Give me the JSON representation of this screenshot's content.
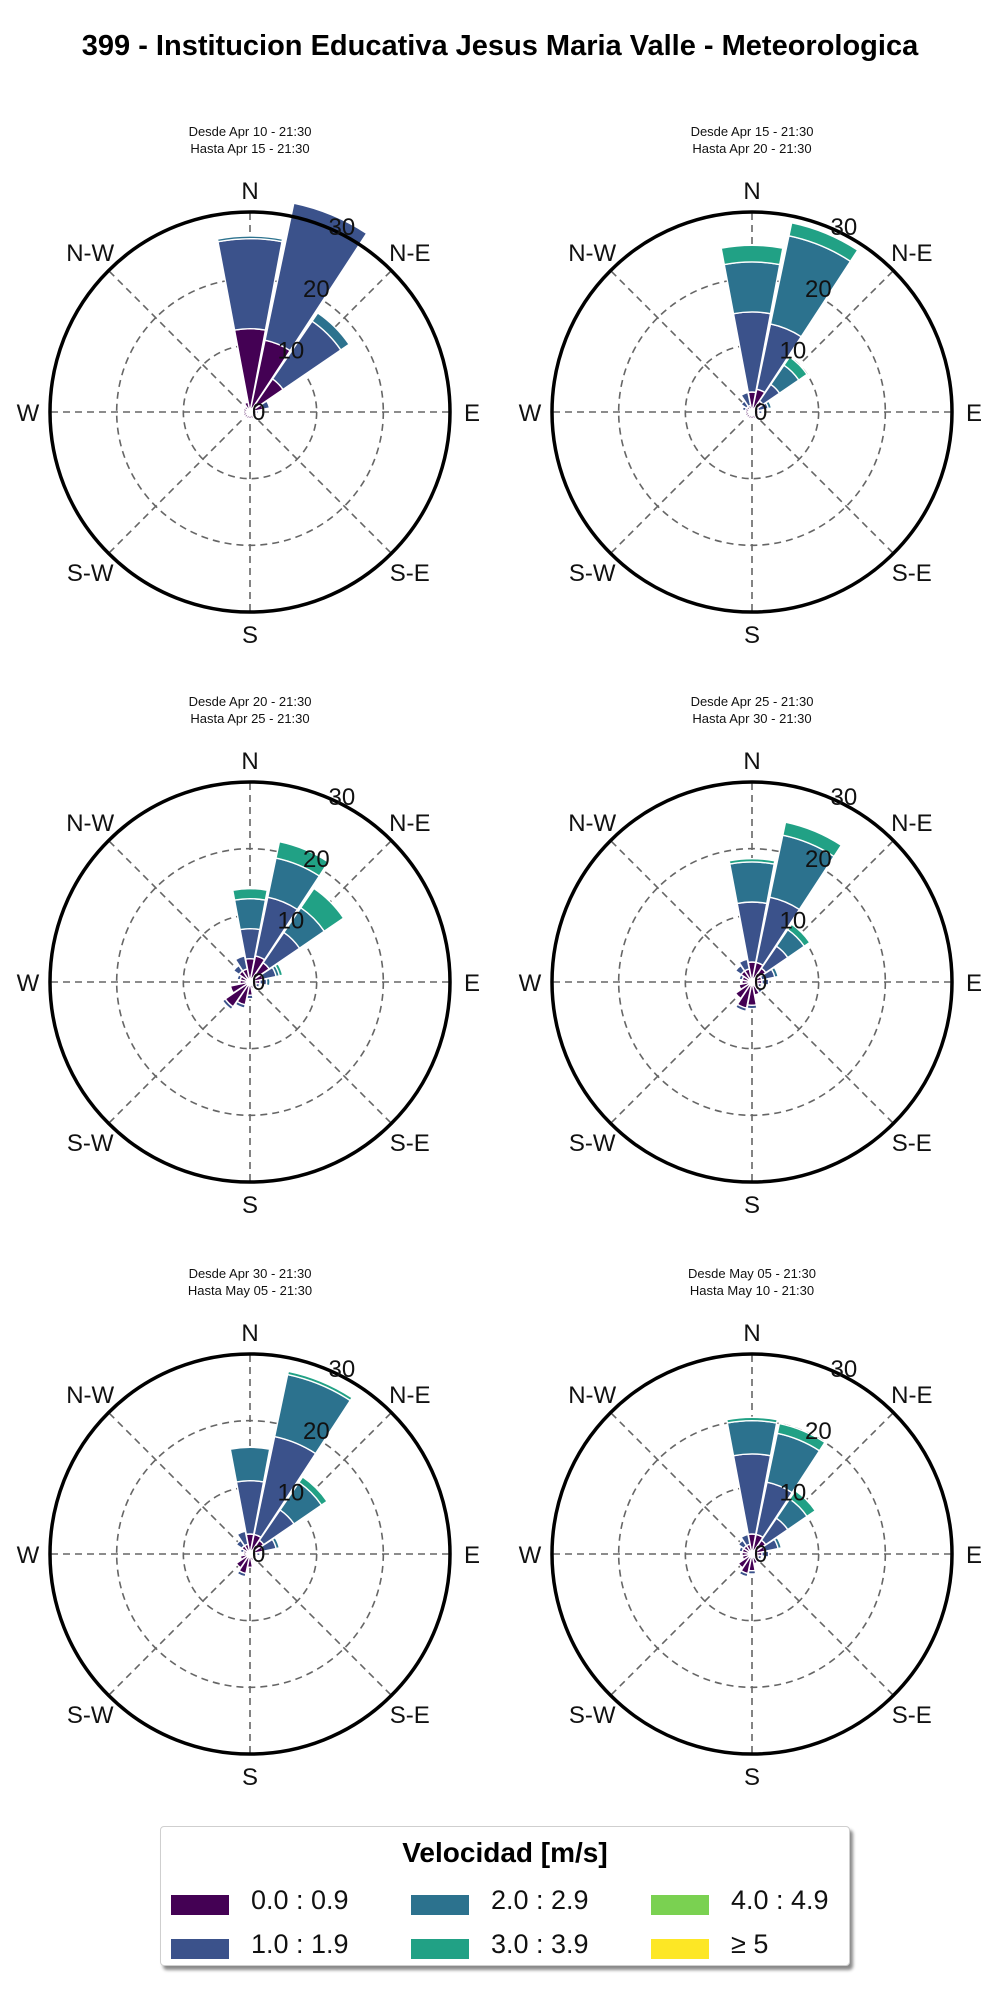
{
  "title": "399 - Institucion Educativa Jesus Maria Valle - Meteorologica",
  "colors": {
    "bins": [
      "#440154",
      "#3b528b",
      "#2c728e",
      "#21a185",
      "#7ad151",
      "#fde725"
    ],
    "ring": "#000000",
    "grid": "#666666"
  },
  "legend": {
    "title": "Velocidad [m/s]",
    "items": [
      "0.0 : 0.9",
      "1.0 : 1.9",
      "2.0 : 2.9",
      "3.0 : 3.9",
      "4.0 : 4.9",
      "≥  5"
    ]
  },
  "chart_data": [
    {
      "type": "windrose",
      "title": "Desde Apr 10 - 21:30",
      "subtitle": "Hasta Apr 15 - 21:30",
      "direction_labels": [
        "N",
        "N-E",
        "E",
        "S-E",
        "S",
        "S-W",
        "W",
        "N-W"
      ],
      "radial_ticks": [
        "0",
        "10",
        "20",
        "30"
      ],
      "rmax": 30,
      "directions_deg": [
        0,
        22.5,
        45,
        67.5,
        90,
        112.5,
        135,
        157.5,
        180,
        202.5,
        225,
        247.5,
        270,
        292.5,
        315,
        337.5
      ],
      "bins": [
        "0.0 : 0.9",
        "1.0 : 1.9",
        "2.0 : 2.9",
        "3.0 : 3.9",
        "4.0 : 4.9",
        "≥  5"
      ],
      "frequency": [
        [
          12.5,
          13.5,
          0.4,
          0,
          0,
          0
        ],
        [
          11.0,
          21.0,
          0,
          0,
          0,
          0
        ],
        [
          6.0,
          10.5,
          1.5,
          0,
          0,
          0
        ],
        [
          2.0,
          1.0,
          0,
          0,
          0,
          0
        ],
        [
          1.0,
          0.3,
          0,
          0,
          0,
          0
        ],
        [
          1.0,
          0,
          0,
          0,
          0,
          0
        ],
        [
          1.0,
          0,
          0,
          0,
          0,
          0
        ],
        [
          1.0,
          0,
          0,
          0,
          0,
          0
        ],
        [
          1.0,
          0,
          0,
          0,
          0,
          0
        ],
        [
          1.0,
          0,
          0,
          0,
          0,
          0
        ],
        [
          1.0,
          0,
          0,
          0,
          0,
          0
        ],
        [
          1.0,
          0,
          0,
          0,
          0,
          0
        ],
        [
          1.0,
          0,
          0,
          0,
          0,
          0
        ],
        [
          1.0,
          0,
          0,
          0,
          0,
          0
        ],
        [
          1.0,
          0,
          0,
          0,
          0,
          0
        ],
        [
          1.5,
          0,
          0,
          0,
          0,
          0
        ]
      ]
    },
    {
      "type": "windrose",
      "title": "Desde Apr 15 - 21:30",
      "subtitle": "Hasta Apr 20 - 21:30",
      "direction_labels": [
        "N",
        "N-E",
        "E",
        "S-E",
        "S",
        "S-W",
        "W",
        "N-W"
      ],
      "radial_ticks": [
        "0",
        "10",
        "20",
        "30"
      ],
      "rmax": 30,
      "directions_deg": [
        0,
        22.5,
        45,
        67.5,
        90,
        112.5,
        135,
        157.5,
        180,
        202.5,
        225,
        247.5,
        270,
        292.5,
        315,
        337.5
      ],
      "bins": [
        "0.0 : 0.9",
        "1.0 : 1.9",
        "2.0 : 2.9",
        "3.0 : 3.9",
        "4.0 : 4.9",
        "≥  5"
      ],
      "frequency": [
        [
          3.0,
          12.0,
          7.5,
          2.5,
          0,
          0
        ],
        [
          3.5,
          10.0,
          13.5,
          2.0,
          0,
          0
        ],
        [
          2.0,
          3.0,
          3.5,
          1.5,
          0,
          0
        ],
        [
          1.0,
          1.5,
          0.5,
          0,
          0,
          0
        ],
        [
          1.0,
          0.5,
          0,
          0,
          0,
          0
        ],
        [
          1.0,
          0,
          0,
          0,
          0,
          0
        ],
        [
          1.0,
          0,
          0,
          0,
          0,
          0
        ],
        [
          1.0,
          0,
          0,
          0,
          0,
          0
        ],
        [
          1.0,
          0,
          0,
          0,
          0,
          0
        ],
        [
          1.0,
          0,
          0,
          0,
          0,
          0
        ],
        [
          1.0,
          0,
          0,
          0,
          0,
          0
        ],
        [
          1.0,
          0,
          0,
          0,
          0,
          0
        ],
        [
          1.0,
          0,
          0,
          0,
          0,
          0
        ],
        [
          1.0,
          0.5,
          0,
          0,
          0,
          0
        ],
        [
          1.0,
          1.0,
          0,
          0,
          0,
          0
        ],
        [
          1.0,
          2.0,
          0,
          0,
          0,
          0
        ]
      ]
    },
    {
      "type": "windrose",
      "title": "Desde Apr 20 - 21:30",
      "subtitle": "Hasta Apr 25 - 21:30",
      "direction_labels": [
        "N",
        "N-E",
        "E",
        "S-E",
        "S",
        "S-W",
        "W",
        "N-W"
      ],
      "radial_ticks": [
        "0",
        "10",
        "20",
        "30"
      ],
      "rmax": 30,
      "directions_deg": [
        0,
        22.5,
        45,
        67.5,
        90,
        112.5,
        135,
        157.5,
        180,
        202.5,
        225,
        247.5,
        270,
        292.5,
        315,
        337.5
      ],
      "bins": [
        "0.0 : 0.9",
        "1.0 : 1.9",
        "2.0 : 2.9",
        "3.0 : 3.9",
        "4.0 : 4.9",
        "≥  5"
      ],
      "frequency": [
        [
          3.5,
          4.5,
          4.5,
          1.5,
          0,
          0
        ],
        [
          4.0,
          9.0,
          6.0,
          2.5,
          0,
          0
        ],
        [
          3.5,
          5.5,
          4.5,
          3.5,
          0,
          0
        ],
        [
          2.0,
          2.0,
          0.5,
          0.5,
          0,
          0
        ],
        [
          1.5,
          1.0,
          0.5,
          0,
          0,
          0
        ],
        [
          1.0,
          0.5,
          0,
          0,
          0,
          0
        ],
        [
          1.0,
          0,
          0,
          0,
          0,
          0
        ],
        [
          1.0,
          0,
          0,
          0,
          0,
          0
        ],
        [
          2.0,
          0.5,
          0,
          0,
          0,
          0
        ],
        [
          3.5,
          0.5,
          0,
          0,
          0,
          0
        ],
        [
          4.5,
          0.5,
          0,
          0,
          0,
          0
        ],
        [
          3.0,
          0,
          0,
          0,
          0,
          0
        ],
        [
          1.5,
          0,
          0,
          0,
          0,
          0
        ],
        [
          1.5,
          0.5,
          0,
          0,
          0,
          0
        ],
        [
          2.0,
          1.0,
          0,
          0,
          0,
          0
        ],
        [
          2.0,
          2.0,
          0,
          0,
          0,
          0
        ]
      ]
    },
    {
      "type": "windrose",
      "title": "Desde Apr 25 - 21:30",
      "subtitle": "Hasta Apr 30 - 21:30",
      "direction_labels": [
        "N",
        "N-E",
        "E",
        "S-E",
        "S",
        "S-W",
        "W",
        "N-W"
      ],
      "radial_ticks": [
        "0",
        "10",
        "20",
        "30"
      ],
      "rmax": 30,
      "directions_deg": [
        0,
        22.5,
        45,
        67.5,
        90,
        112.5,
        135,
        157.5,
        180,
        202.5,
        225,
        247.5,
        270,
        292.5,
        315,
        337.5
      ],
      "bins": [
        "0.0 : 0.9",
        "1.0 : 1.9",
        "2.0 : 2.9",
        "3.0 : 3.9",
        "4.0 : 4.9",
        "≥  5"
      ],
      "frequency": [
        [
          3.0,
          9.0,
          6.0,
          0.5,
          0,
          0
        ],
        [
          3.0,
          10.0,
          9.5,
          2.0,
          0,
          0
        ],
        [
          2.5,
          4.0,
          3.0,
          1.0,
          0,
          0
        ],
        [
          1.5,
          2.0,
          0.5,
          0,
          0,
          0
        ],
        [
          1.5,
          1.0,
          0,
          0,
          0,
          0
        ],
        [
          1.0,
          0.5,
          0,
          0,
          0,
          0
        ],
        [
          1.5,
          0.5,
          0,
          0,
          0,
          0
        ],
        [
          2.0,
          0,
          0,
          0,
          0,
          0
        ],
        [
          3.5,
          0.5,
          0,
          0,
          0,
          0
        ],
        [
          4.0,
          0.5,
          0,
          0,
          0,
          0
        ],
        [
          3.0,
          0,
          0,
          0,
          0,
          0
        ],
        [
          2.0,
          0,
          0,
          0,
          0,
          0
        ],
        [
          1.5,
          0,
          0,
          0,
          0,
          0
        ],
        [
          1.5,
          0.5,
          0,
          0,
          0,
          0
        ],
        [
          2.0,
          1.0,
          0,
          0,
          0,
          0
        ],
        [
          2.0,
          1.5,
          0,
          0,
          0,
          0
        ]
      ]
    },
    {
      "type": "windrose",
      "title": "Desde Apr 30 - 21:30",
      "subtitle": "Hasta May 05 - 21:30",
      "direction_labels": [
        "N",
        "N-E",
        "E",
        "S-E",
        "S",
        "S-W",
        "W",
        "N-W"
      ],
      "radial_ticks": [
        "0",
        "10",
        "20",
        "30"
      ],
      "rmax": 30,
      "directions_deg": [
        0,
        22.5,
        45,
        67.5,
        90,
        112.5,
        135,
        157.5,
        180,
        202.5,
        225,
        247.5,
        270,
        292.5,
        315,
        337.5
      ],
      "bins": [
        "0.0 : 0.9",
        "1.0 : 1.9",
        "2.0 : 2.9",
        "3.0 : 3.9",
        "4.0 : 4.9",
        "≥  5"
      ],
      "frequency": [
        [
          3.0,
          8.0,
          5.0,
          0,
          0,
          0
        ],
        [
          3.0,
          15.0,
          9.5,
          0.5,
          0,
          0
        ],
        [
          2.5,
          5.5,
          5.0,
          1.0,
          0,
          0
        ],
        [
          2.0,
          2.0,
          0.5,
          0,
          0,
          0
        ],
        [
          1.0,
          0.5,
          0,
          0,
          0,
          0
        ],
        [
          1.0,
          0,
          0,
          0,
          0,
          0
        ],
        [
          1.0,
          0,
          0,
          0,
          0,
          0
        ],
        [
          1.0,
          0,
          0,
          0,
          0,
          0
        ],
        [
          2.0,
          0,
          0,
          0,
          0,
          0
        ],
        [
          3.0,
          0.5,
          0,
          0,
          0,
          0
        ],
        [
          2.5,
          0,
          0,
          0,
          0,
          0
        ],
        [
          1.5,
          0,
          0,
          0,
          0,
          0
        ],
        [
          1.0,
          0,
          0,
          0,
          0,
          0
        ],
        [
          1.0,
          0.5,
          0,
          0,
          0,
          0
        ],
        [
          1.5,
          1.0,
          0,
          0,
          0,
          0
        ],
        [
          1.5,
          2.0,
          0,
          0,
          0,
          0
        ]
      ]
    },
    {
      "type": "windrose",
      "title": "Desde May 05 - 21:30",
      "subtitle": "Hasta May 10 - 21:30",
      "direction_labels": [
        "N",
        "N-E",
        "E",
        "S-E",
        "S",
        "S-W",
        "W",
        "N-W"
      ],
      "radial_ticks": [
        "0",
        "10",
        "20",
        "30"
      ],
      "rmax": 30,
      "directions_deg": [
        0,
        22.5,
        45,
        67.5,
        90,
        112.5,
        135,
        157.5,
        180,
        202.5,
        225,
        247.5,
        270,
        292.5,
        315,
        337.5
      ],
      "bins": [
        "0.0 : 0.9",
        "1.0 : 1.9",
        "2.0 : 2.9",
        "3.0 : 3.9",
        "4.0 : 4.9",
        "≥  5"
      ],
      "frequency": [
        [
          3.0,
          12.0,
          5.0,
          0.5,
          0,
          0
        ],
        [
          3.0,
          8.0,
          7.5,
          1.5,
          0,
          0
        ],
        [
          2.5,
          4.0,
          3.5,
          1.5,
          0,
          0
        ],
        [
          2.0,
          2.0,
          0.5,
          0,
          0,
          0
        ],
        [
          1.5,
          1.0,
          0,
          0,
          0,
          0
        ],
        [
          1.0,
          0.5,
          0,
          0,
          0,
          0
        ],
        [
          1.0,
          0.5,
          0,
          0,
          0,
          0
        ],
        [
          1.5,
          0,
          0,
          0,
          0,
          0
        ],
        [
          2.5,
          0.5,
          0,
          0,
          0,
          0
        ],
        [
          3.0,
          0.5,
          0,
          0,
          0,
          0
        ],
        [
          2.5,
          0,
          0,
          0,
          0,
          0
        ],
        [
          1.5,
          0,
          0,
          0,
          0,
          0
        ],
        [
          1.5,
          0,
          0,
          0,
          0,
          0
        ],
        [
          1.5,
          0.5,
          0,
          0,
          0,
          0
        ],
        [
          1.5,
          1.0,
          0,
          0,
          0,
          0
        ],
        [
          1.5,
          1.5,
          0,
          0,
          0,
          0
        ]
      ]
    }
  ]
}
